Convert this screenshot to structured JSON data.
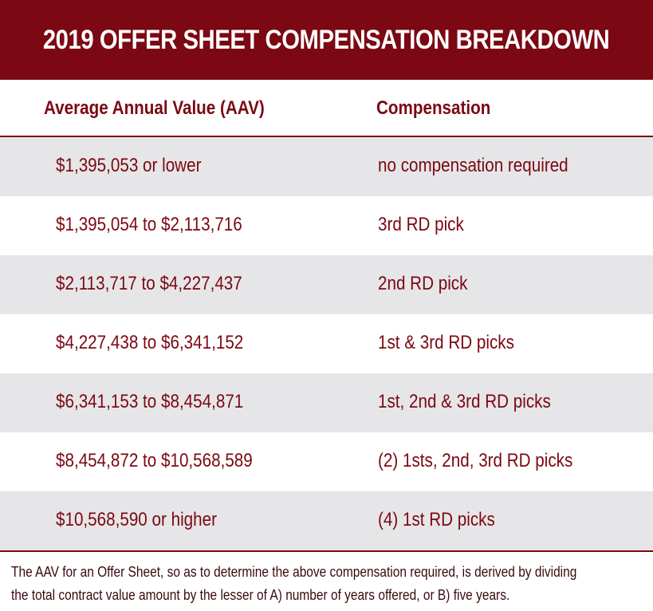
{
  "title": "2019 OFFER SHEET COMPENSATION BREAKDOWN",
  "headers": {
    "aav": "Average Annual Value (AAV)",
    "compensation": "Compensation"
  },
  "rows": [
    {
      "aav": "$1,395,053 or lower",
      "compensation": "no compensation required"
    },
    {
      "aav": "$1,395,054 to $2,113,716",
      "compensation": "3rd RD pick"
    },
    {
      "aav": "$2,113,717 to $4,227,437",
      "compensation": "2nd RD pick"
    },
    {
      "aav": "$4,227,438 to $6,341,152",
      "compensation": "1st & 3rd RD picks"
    },
    {
      "aav": "$6,341,153 to $8,454,871",
      "compensation": "1st, 2nd & 3rd RD picks"
    },
    {
      "aav": "$8,454,872 to $10,568,589",
      "compensation": "(2) 1sts, 2nd, 3rd RD picks"
    },
    {
      "aav": "$10,568,590 or higher",
      "compensation": "(4) 1st RD picks"
    }
  ],
  "footnote": {
    "line1": "The AAV for an Offer Sheet, so as to determine the above compensation required, is derived by dividing",
    "line2": "the total contract value amount by the lesser of A) number of years offered, or B) five years."
  },
  "colors": {
    "accent": "#7b0812",
    "row_shade": "#e6e6e8"
  }
}
